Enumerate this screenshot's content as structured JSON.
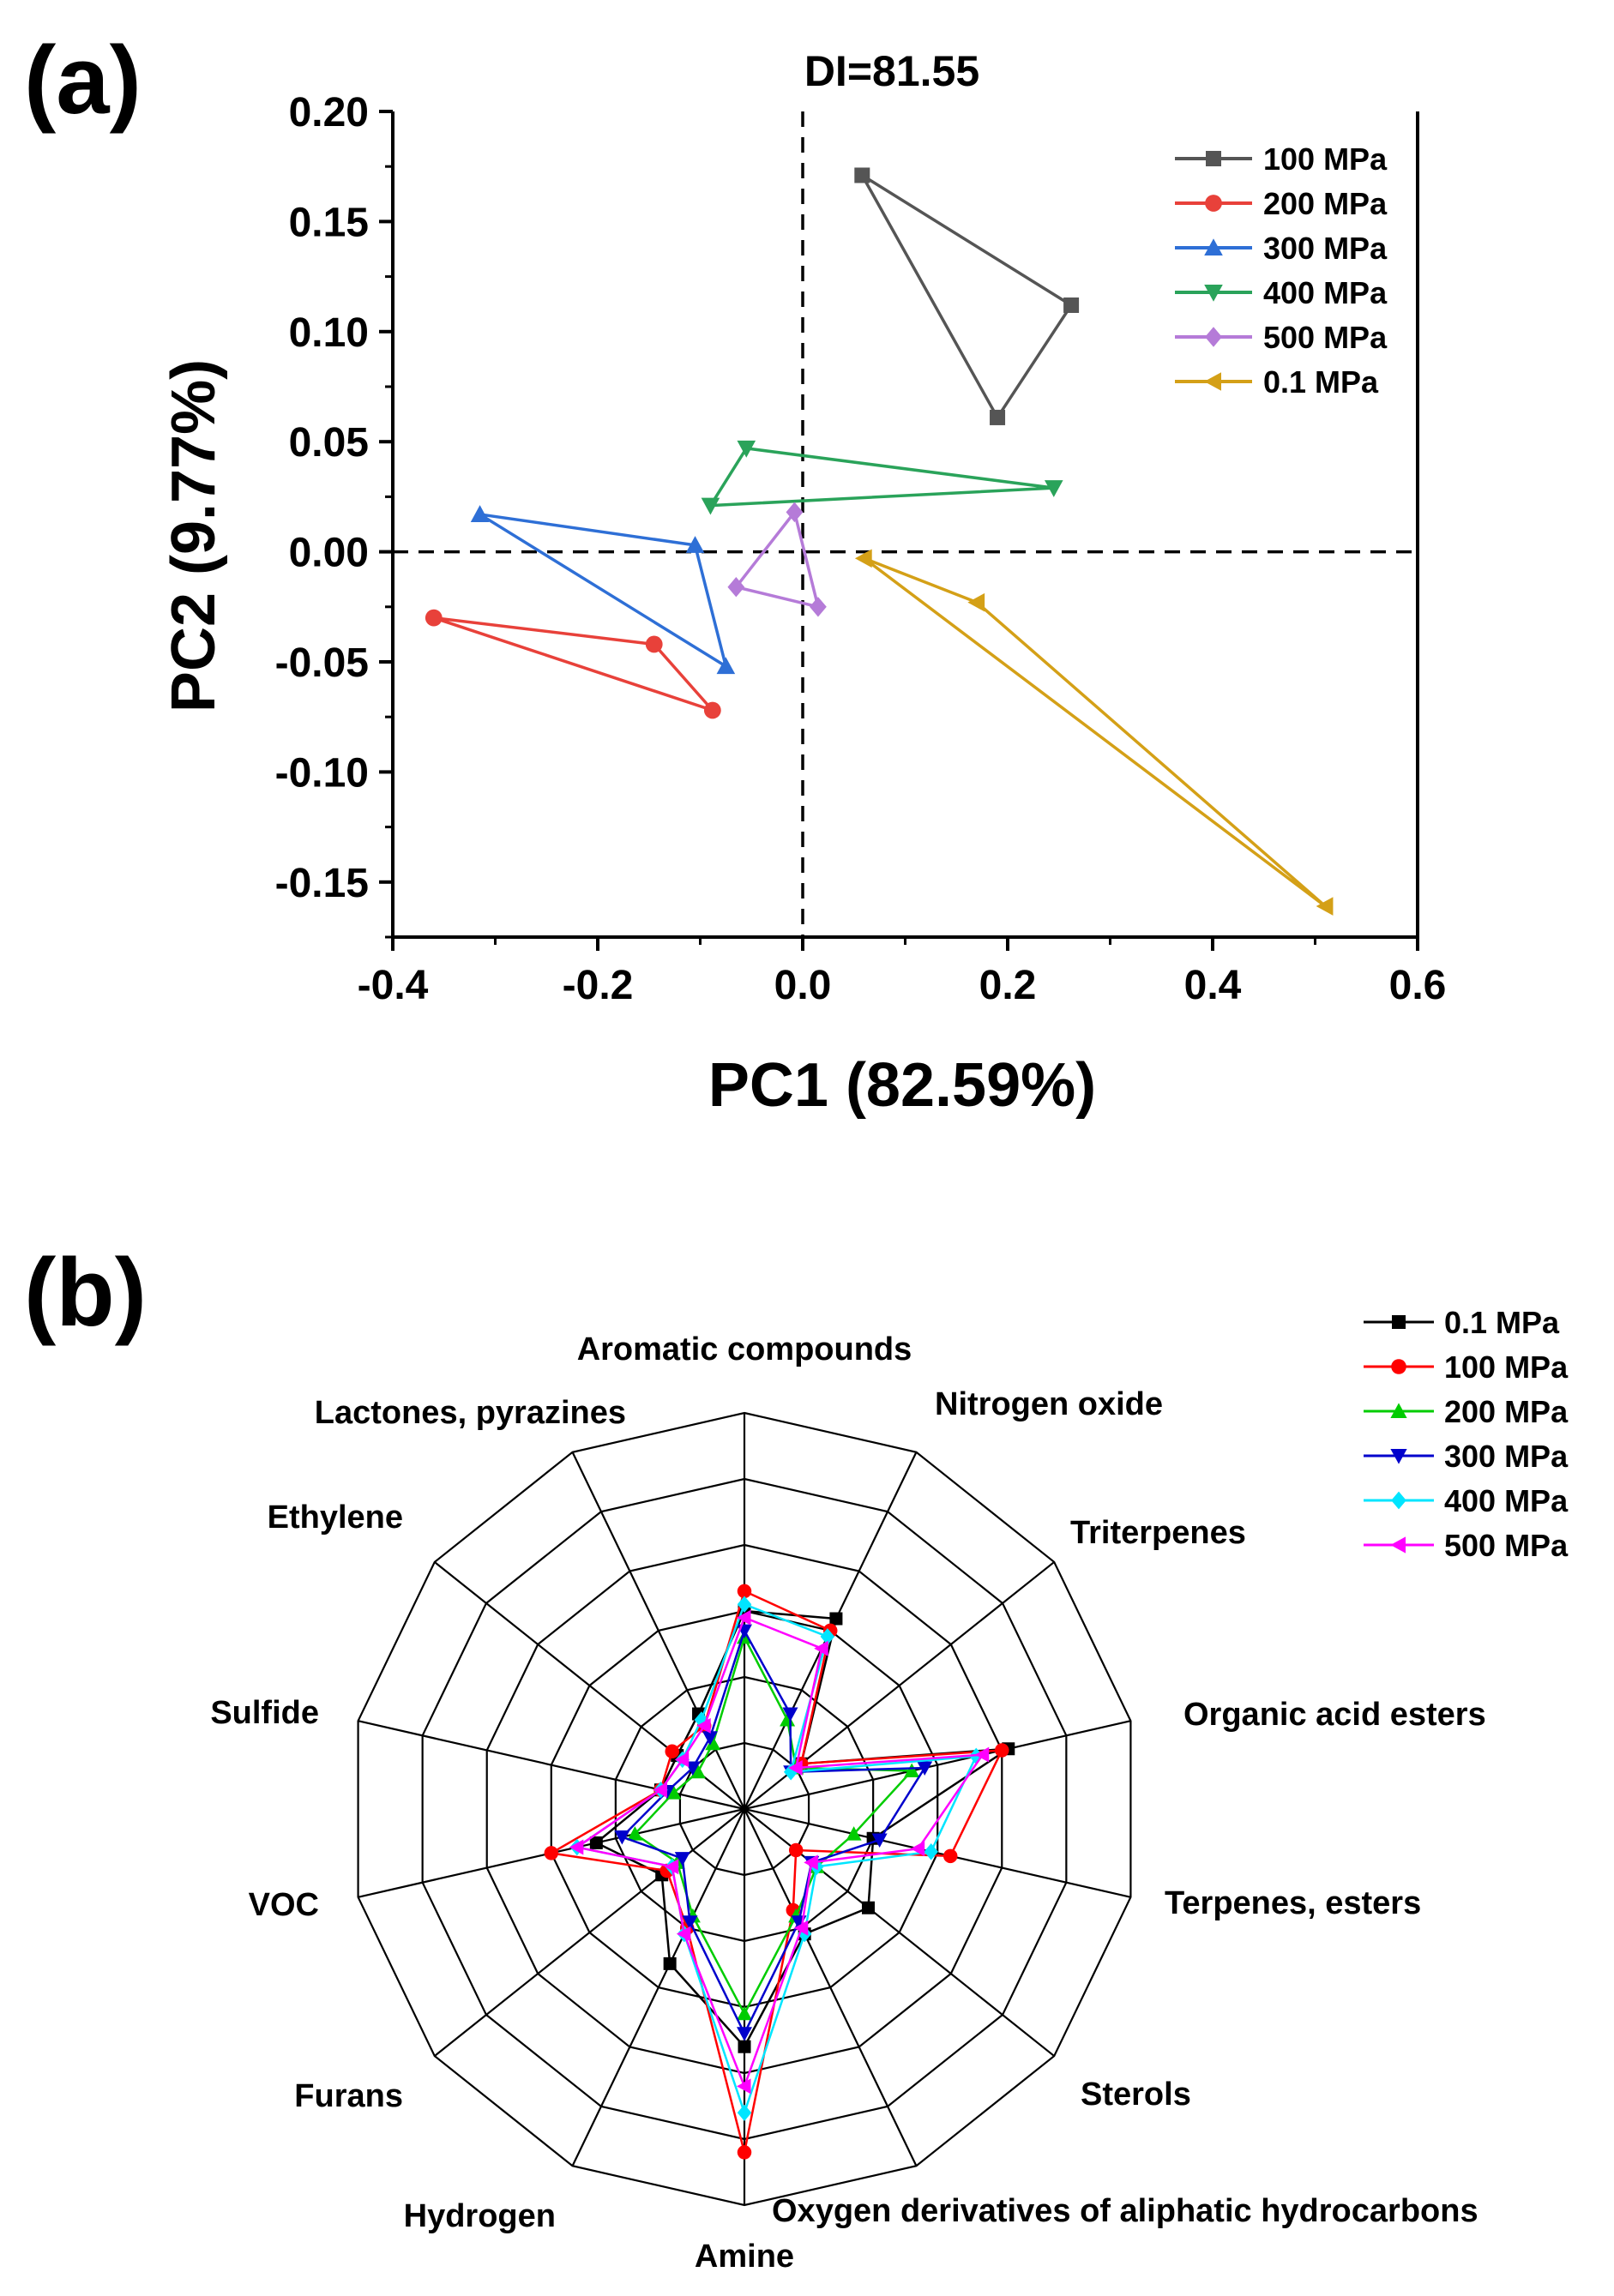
{
  "panels": {
    "a": "(a)",
    "b": "(b)"
  },
  "chart_data": [
    {
      "type": "scatter",
      "title": "DI=81.55",
      "xlabel": "PC1 (82.59%)",
      "ylabel": "PC2 (9.77%)",
      "xlim": [
        -0.4,
        0.6
      ],
      "ylim": [
        -0.175,
        0.2
      ],
      "x_ticks": [
        "-0.4",
        "-0.2",
        "0.0",
        "0.2",
        "0.4",
        "0.6"
      ],
      "y_ticks": [
        "0.20",
        "0.15",
        "0.10",
        "0.05",
        "0.00",
        "-0.05",
        "-0.10",
        "-0.15"
      ],
      "reference_lines": {
        "x": 0,
        "y": 0,
        "style": "dashed"
      },
      "legend_position": "top-right",
      "series": [
        {
          "name": "100 MPa",
          "color": "#555555",
          "marker": "square",
          "points": [
            [
              0.058,
              0.171
            ],
            [
              0.262,
              0.112
            ],
            [
              0.19,
              0.061
            ]
          ]
        },
        {
          "name": "200 MPa",
          "color": "#e8413a",
          "marker": "circle",
          "points": [
            [
              -0.36,
              -0.03
            ],
            [
              -0.145,
              -0.042
            ],
            [
              -0.088,
              -0.072
            ]
          ]
        },
        {
          "name": "300 MPa",
          "color": "#2e6fd6",
          "marker": "triangle-up",
          "points": [
            [
              -0.315,
              0.017
            ],
            [
              -0.105,
              0.003
            ],
            [
              -0.075,
              -0.052
            ]
          ]
        },
        {
          "name": "400 MPa",
          "color": "#2aa35a",
          "marker": "triangle-down",
          "points": [
            [
              -0.055,
              0.047
            ],
            [
              0.245,
              0.029
            ],
            [
              -0.09,
              0.021
            ]
          ]
        },
        {
          "name": "500 MPa",
          "color": "#b57bd8",
          "marker": "diamond",
          "points": [
            [
              -0.008,
              0.018
            ],
            [
              0.015,
              -0.025
            ],
            [
              -0.065,
              -0.016
            ]
          ]
        },
        {
          "name": "0.1  MPa",
          "color": "#d4a017",
          "marker": "triangle-left",
          "points": [
            [
              0.06,
              -0.003
            ],
            [
              0.17,
              -0.023
            ],
            [
              0.51,
              -0.161
            ]
          ]
        }
      ]
    },
    {
      "type": "radar",
      "categories": [
        "Aromatic compounds",
        "Nitrogen oxide",
        "Triterpenes",
        "Organic acid esters",
        "Terpenes, esters",
        "Sterols",
        "Oxygen derivatives of aliphatic hydrocarbons",
        "Amine",
        "Hydrogen",
        "Furans",
        "VOC",
        "Sulfide",
        "Ethylene",
        "Lactones, pyrazines"
      ],
      "rlim": [
        0,
        6
      ],
      "rings": 6,
      "legend_position": "top-right",
      "series": [
        {
          "name": "0.1 MPa",
          "color": "#000000",
          "marker": "square",
          "values": [
            3.0,
            3.2,
            1.1,
            4.1,
            2.0,
            2.4,
            2.1,
            3.6,
            2.6,
            1.6,
            2.3,
            1.3,
            1.3,
            1.6
          ]
        },
        {
          "name": "100 MPa",
          "color": "#ff0000",
          "marker": "circle",
          "values": [
            3.3,
            3.0,
            1.1,
            4.0,
            3.2,
            1.0,
            1.7,
            5.2,
            2.0,
            1.5,
            3.0,
            1.3,
            1.4,
            1.4
          ]
        },
        {
          "name": "200 MPa",
          "color": "#00cc00",
          "marker": "triangle-up",
          "values": [
            2.6,
            1.5,
            1.0,
            2.6,
            1.7,
            1.4,
            1.8,
            3.1,
            1.8,
            1.3,
            1.7,
            1.1,
            0.9,
            1.1
          ]
        },
        {
          "name": "300 MPa",
          "color": "#0000cc",
          "marker": "triangle-down",
          "values": [
            2.7,
            1.6,
            0.9,
            2.8,
            2.1,
            1.3,
            1.9,
            3.4,
            1.9,
            1.2,
            1.9,
            1.2,
            1.0,
            1.2
          ]
        },
        {
          "name": "400 MPa",
          "color": "#00e5ff",
          "marker": "diamond",
          "values": [
            3.1,
            2.9,
            0.9,
            3.6,
            2.9,
            1.4,
            2.1,
            4.6,
            2.1,
            1.4,
            2.6,
            1.3,
            1.2,
            1.5
          ]
        },
        {
          "name": "500 MPa",
          "color": "#ff00ff",
          "marker": "triangle-left",
          "values": [
            2.9,
            2.7,
            1.0,
            3.7,
            2.7,
            1.3,
            2.0,
            4.2,
            2.1,
            1.4,
            2.6,
            1.3,
            1.2,
            1.4
          ]
        }
      ]
    }
  ]
}
